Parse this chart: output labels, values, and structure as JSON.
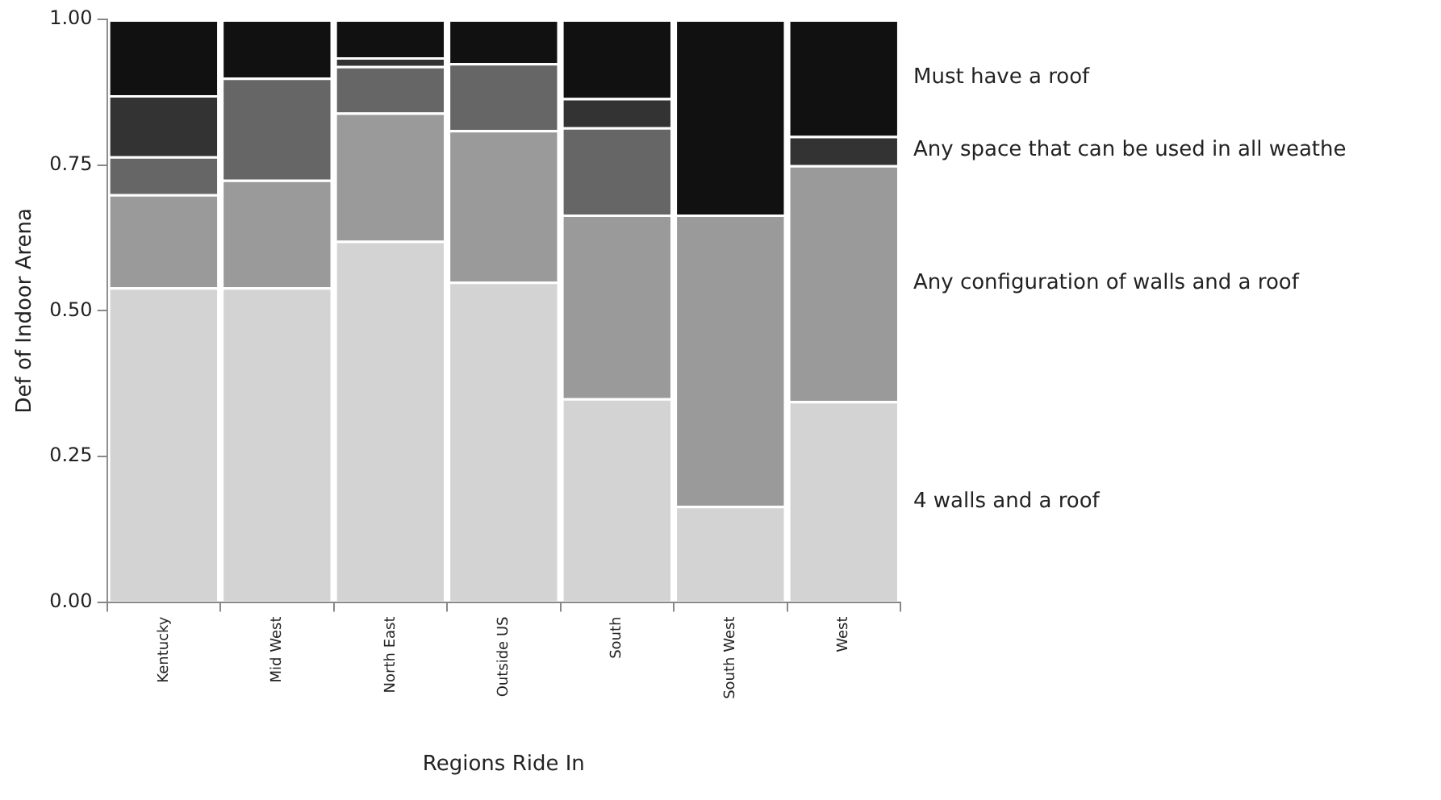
{
  "chart_data": {
    "type": "bar",
    "stacked": true,
    "xlabel": "Regions Ride In",
    "ylabel": "Def of Indoor Arena",
    "categories": [
      "Kentucky",
      "Mid West",
      "North East",
      "Outside US",
      "South",
      "South West",
      "West"
    ],
    "series": [
      {
        "name": "4 walls and a roof",
        "color": "#d3d3d3",
        "values": [
          0.54,
          0.54,
          0.62,
          0.55,
          0.35,
          0.165,
          0.345
        ]
      },
      {
        "name": "Any configuration of walls and a roof",
        "color": "#9a9a9a",
        "values": [
          0.16,
          0.185,
          0.22,
          0.26,
          0.315,
          0.5,
          0.405
        ]
      },
      {
        "color": "#666666",
        "values": [
          0.065,
          0.175,
          0.08,
          0.115,
          0.15,
          0,
          0
        ]
      },
      {
        "name": "Any space that can be used in all weathe",
        "color": "#333333",
        "values": [
          0.105,
          0,
          0.015,
          0,
          0.05,
          0,
          0.05
        ]
      },
      {
        "name": "Must have a roof",
        "color": "#111111",
        "values": [
          0.13,
          0.1,
          0.065,
          0.075,
          0.135,
          0.335,
          0.2
        ]
      }
    ],
    "ylim": [
      0,
      1
    ],
    "yticks": [
      {
        "value": 0,
        "label": "0.00"
      },
      {
        "value": 0.25,
        "label": "0.25"
      },
      {
        "value": 0.5,
        "label": "0.50"
      },
      {
        "value": 0.75,
        "label": "0.75"
      },
      {
        "value": 1,
        "label": "1.00"
      }
    ],
    "grid": false,
    "legend": false
  }
}
